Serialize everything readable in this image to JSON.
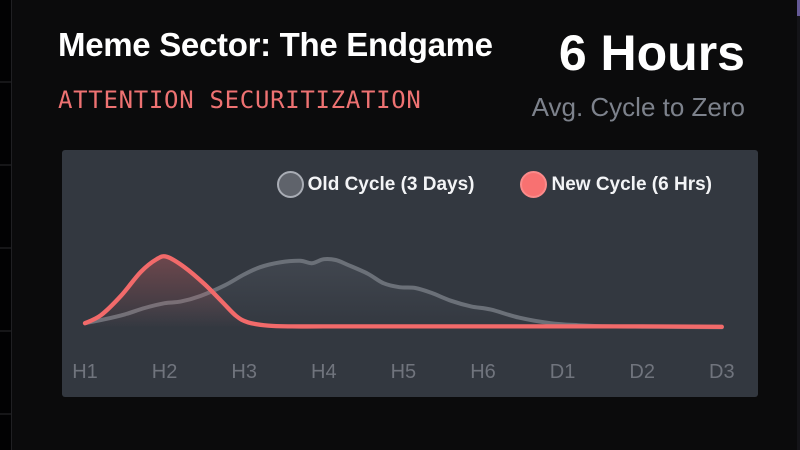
{
  "header": {
    "title": "Meme Sector: The Endgame",
    "subtitle": "ATTENTION SECURITIZATION",
    "accent_color": "#ee7272",
    "stat_value": "6 Hours",
    "stat_caption": "Avg. Cycle to Zero"
  },
  "colors": {
    "page_background": "#0b0b0c",
    "scrollbar_thumb": "#655a96",
    "title_text": "#ffffff",
    "caption_text": "#7d828c"
  },
  "chart_data": {
    "type": "line",
    "title": "",
    "xlabel": "",
    "ylabel": "",
    "categories": [
      "H1",
      "H2",
      "H3",
      "H4",
      "H5",
      "H6",
      "D1",
      "D2",
      "D3"
    ],
    "ylim": [
      0,
      100
    ],
    "grid": false,
    "y_axis_shown": false,
    "legend_position": "top-right",
    "panel_bg": "#333840",
    "axis_label_color": "#70747d",
    "series": [
      {
        "name": "Old Cycle (3 Days)",
        "color": "#6b7078",
        "stroke_width": 4,
        "marker_fill": "#5f636b",
        "marker_stroke": "#a9adb5",
        "fill_from": "rgba(150,156,170,0.14)",
        "fill_to": "rgba(150,156,170,0)",
        "values": [
          6,
          31,
          67,
          86,
          51,
          24,
          4,
          1.5,
          1
        ],
        "points": [
          [
            0,
            6
          ],
          [
            0.25,
            11
          ],
          [
            0.5,
            17
          ],
          [
            0.75,
            25
          ],
          [
            1.0,
            31
          ],
          [
            1.2,
            33
          ],
          [
            1.45,
            40
          ],
          [
            1.75,
            53
          ],
          [
            2.0,
            67
          ],
          [
            2.2,
            76
          ],
          [
            2.45,
            82
          ],
          [
            2.7,
            84
          ],
          [
            2.85,
            81
          ],
          [
            3.0,
            86
          ],
          [
            3.15,
            85
          ],
          [
            3.3,
            79
          ],
          [
            3.55,
            68
          ],
          [
            3.75,
            56
          ],
          [
            3.95,
            51
          ],
          [
            4.15,
            50
          ],
          [
            4.35,
            44
          ],
          [
            4.6,
            34
          ],
          [
            4.85,
            27
          ],
          [
            5.1,
            23
          ],
          [
            5.45,
            13
          ],
          [
            5.85,
            6
          ],
          [
            6.2,
            3.5
          ],
          [
            6.6,
            2
          ],
          [
            7.2,
            1.5
          ],
          [
            8,
            1
          ]
        ]
      },
      {
        "name": "New Cycle (6 Hrs)",
        "color": "#f26a6a",
        "stroke_width": 4.3,
        "marker_fill": "#f87171",
        "marker_stroke": "#fa8a8a",
        "fill_from": "rgba(242,106,106,0.30)",
        "fill_to": "rgba(242,106,106,0)",
        "values": [
          6,
          89,
          7,
          2,
          2,
          2,
          2,
          2,
          1.5
        ],
        "points": [
          [
            0,
            6
          ],
          [
            0.2,
            16
          ],
          [
            0.45,
            40
          ],
          [
            0.7,
            70
          ],
          [
            0.9,
            86
          ],
          [
            1.03,
            89
          ],
          [
            1.25,
            76
          ],
          [
            1.5,
            55
          ],
          [
            1.72,
            33
          ],
          [
            1.9,
            15
          ],
          [
            2.05,
            7
          ],
          [
            2.3,
            3
          ],
          [
            2.6,
            2
          ],
          [
            3,
            2
          ],
          [
            4,
            2
          ],
          [
            5,
            2
          ],
          [
            6,
            2
          ],
          [
            7,
            2
          ],
          [
            8,
            1.5
          ]
        ]
      }
    ]
  }
}
